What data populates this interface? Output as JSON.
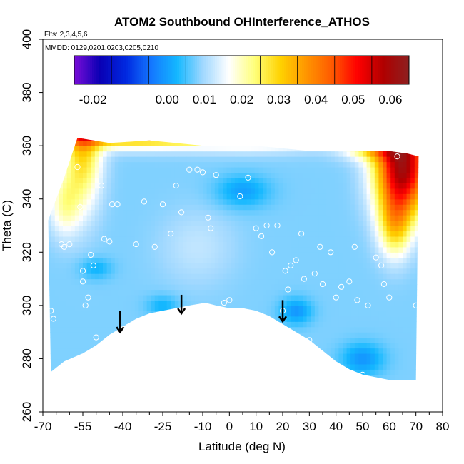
{
  "chart_data": {
    "type": "heatmap",
    "title": "ATOM2 Southbound OHInterference_ATHOS",
    "subtitle_flights": "Flts: 2,3,4,5,6",
    "subtitle_dates": "MMDD: 0129,0201,0203,0205,0210",
    "xlabel": "Latitude (deg N)",
    "ylabel": "Theta (C)",
    "xlim": [
      -70,
      80
    ],
    "ylim": [
      260,
      400
    ],
    "x_ticks": [
      -70,
      -55,
      -40,
      -25,
      -10,
      0,
      10,
      20,
      30,
      40,
      50,
      60,
      70,
      80
    ],
    "x_tick_labels": [
      "-70",
      "-55",
      "-40",
      "-25",
      "-10",
      "0",
      "10",
      "20",
      "30",
      "40",
      "50",
      "60",
      "70",
      "80"
    ],
    "x_minor_ticks": [
      -65,
      -60,
      -50,
      -45,
      -35,
      -30,
      -20,
      -15,
      -5,
      5,
      15,
      25,
      35,
      45,
      55,
      65,
      75
    ],
    "y_ticks": [
      260,
      280,
      300,
      320,
      340,
      360,
      380,
      400
    ],
    "y_tick_labels": [
      "260",
      "280",
      "300",
      "320",
      "340",
      "360",
      "380",
      "400"
    ],
    "colorbar": {
      "range": [
        -0.025,
        0.065
      ],
      "ticks": [
        -0.02,
        0.0,
        0.01,
        0.02,
        0.03,
        0.04,
        0.05,
        0.06
      ],
      "tick_labels": [
        "-0.02",
        "0.00",
        "0.01",
        "0.02",
        "0.03",
        "0.04",
        "0.05",
        "0.06"
      ],
      "colors": [
        "#7a0dd8",
        "#0a00b4",
        "#0028e0",
        "#1478ff",
        "#14b8ff",
        "#a0d8ff",
        "#ffffff",
        "#ffff7a",
        "#ffd200",
        "#ff9600",
        "#ff5a00",
        "#ff0000",
        "#b00000",
        "#8c2020"
      ]
    },
    "coverage_lower_boundary": [
      {
        "lat": -67,
        "theta": 275
      },
      {
        "lat": -62,
        "theta": 279
      },
      {
        "lat": -55,
        "theta": 282
      },
      {
        "lat": -50,
        "theta": 285
      },
      {
        "lat": -45,
        "theta": 289
      },
      {
        "lat": -40,
        "theta": 292
      },
      {
        "lat": -35,
        "theta": 295
      },
      {
        "lat": -30,
        "theta": 297
      },
      {
        "lat": -25,
        "theta": 298
      },
      {
        "lat": -20,
        "theta": 299
      },
      {
        "lat": -15,
        "theta": 300
      },
      {
        "lat": -9,
        "theta": 301
      },
      {
        "lat": -5,
        "theta": 300
      },
      {
        "lat": 0,
        "theta": 299
      },
      {
        "lat": 5,
        "theta": 299
      },
      {
        "lat": 10,
        "theta": 298
      },
      {
        "lat": 15,
        "theta": 296
      },
      {
        "lat": 20,
        "theta": 293
      },
      {
        "lat": 25,
        "theta": 290
      },
      {
        "lat": 30,
        "theta": 287
      },
      {
        "lat": 35,
        "theta": 283
      },
      {
        "lat": 40,
        "theta": 279
      },
      {
        "lat": 45,
        "theta": 276
      },
      {
        "lat": 50,
        "theta": 274
      },
      {
        "lat": 55,
        "theta": 273
      },
      {
        "lat": 60,
        "theta": 272
      },
      {
        "lat": 65,
        "theta": 272
      },
      {
        "lat": 70,
        "theta": 272
      }
    ],
    "coverage_upper_boundary": [
      {
        "lat": -68,
        "theta": 332
      },
      {
        "lat": -62,
        "theta": 348
      },
      {
        "lat": -57,
        "theta": 363
      },
      {
        "lat": -45,
        "theta": 361
      },
      {
        "lat": -30,
        "theta": 362
      },
      {
        "lat": -20,
        "theta": 361
      },
      {
        "lat": -10,
        "theta": 360
      },
      {
        "lat": 0,
        "theta": 360
      },
      {
        "lat": 10,
        "theta": 360
      },
      {
        "lat": 20,
        "theta": 359
      },
      {
        "lat": 30,
        "theta": 358
      },
      {
        "lat": 40,
        "theta": 358
      },
      {
        "lat": 50,
        "theta": 358
      },
      {
        "lat": 60,
        "theta": 358
      },
      {
        "lat": 67,
        "theta": 357
      },
      {
        "lat": 71,
        "theta": 356
      }
    ],
    "field_model": {
      "background": 0.008,
      "features": [
        {
          "lat": -55,
          "theta": 360,
          "dlat": 7,
          "dtheta": 22,
          "amp": 0.022
        },
        {
          "lat": -62,
          "theta": 338,
          "dlat": 6,
          "dtheta": 12,
          "amp": 0.012
        },
        {
          "lat": -40,
          "theta": 365,
          "dlat": 30,
          "dtheta": 5,
          "amp": 0.035
        },
        {
          "lat": 10,
          "theta": 366,
          "dlat": 30,
          "dtheta": 6,
          "amp": 0.03
        },
        {
          "lat": 65,
          "theta": 352,
          "dlat": 10,
          "dtheta": 18,
          "amp": 0.052
        },
        {
          "lat": 55,
          "theta": 360,
          "dlat": 12,
          "dtheta": 5,
          "amp": 0.02
        },
        {
          "lat": 62,
          "theta": 330,
          "dlat": 6,
          "dtheta": 12,
          "amp": 0.018
        },
        {
          "lat": 5,
          "theta": 343,
          "dlat": 10,
          "dtheta": 6,
          "amp": -0.008
        },
        {
          "lat": -12,
          "theta": 322,
          "dlat": 14,
          "dtheta": 14,
          "amp": 0.004
        },
        {
          "lat": 25,
          "theta": 298,
          "dlat": 6,
          "dtheta": 5,
          "amp": -0.009
        },
        {
          "lat": -25,
          "theta": 300,
          "dlat": 6,
          "dtheta": 4,
          "amp": -0.006
        },
        {
          "lat": 50,
          "theta": 280,
          "dlat": 8,
          "dtheta": 6,
          "amp": -0.009
        },
        {
          "lat": -50,
          "theta": 314,
          "dlat": 6,
          "dtheta": 4,
          "amp": -0.006
        }
      ]
    },
    "sample_points": [
      {
        "lat": -67,
        "theta": 298
      },
      {
        "lat": -66,
        "theta": 295
      },
      {
        "lat": -63,
        "theta": 323
      },
      {
        "lat": -62,
        "theta": 322
      },
      {
        "lat": -60,
        "theta": 323
      },
      {
        "lat": -57,
        "theta": 352
      },
      {
        "lat": -56,
        "theta": 337
      },
      {
        "lat": -55,
        "theta": 313
      },
      {
        "lat": -55,
        "theta": 309
      },
      {
        "lat": -54,
        "theta": 300
      },
      {
        "lat": -53,
        "theta": 303
      },
      {
        "lat": -52,
        "theta": 319
      },
      {
        "lat": -51,
        "theta": 315
      },
      {
        "lat": -50,
        "theta": 288
      },
      {
        "lat": -48,
        "theta": 345
      },
      {
        "lat": -47,
        "theta": 325
      },
      {
        "lat": -45,
        "theta": 324
      },
      {
        "lat": -44,
        "theta": 338
      },
      {
        "lat": -42,
        "theta": 338
      },
      {
        "lat": -40,
        "theta": 291
      },
      {
        "lat": -38,
        "theta": 292
      },
      {
        "lat": -35,
        "theta": 323
      },
      {
        "lat": -32,
        "theta": 339
      },
      {
        "lat": -30,
        "theta": 295
      },
      {
        "lat": -28,
        "theta": 322
      },
      {
        "lat": -25,
        "theta": 338
      },
      {
        "lat": -22,
        "theta": 327
      },
      {
        "lat": -20,
        "theta": 345
      },
      {
        "lat": -18,
        "theta": 335
      },
      {
        "lat": -15,
        "theta": 351
      },
      {
        "lat": -12,
        "theta": 351
      },
      {
        "lat": -10,
        "theta": 350
      },
      {
        "lat": -8,
        "theta": 333
      },
      {
        "lat": -7,
        "theta": 329
      },
      {
        "lat": -5,
        "theta": 349
      },
      {
        "lat": -2,
        "theta": 301
      },
      {
        "lat": 0,
        "theta": 302
      },
      {
        "lat": 4,
        "theta": 341
      },
      {
        "lat": 7,
        "theta": 348
      },
      {
        "lat": 10,
        "theta": 329
      },
      {
        "lat": 12,
        "theta": 326
      },
      {
        "lat": 14,
        "theta": 330
      },
      {
        "lat": 16,
        "theta": 320
      },
      {
        "lat": 18,
        "theta": 330
      },
      {
        "lat": 20,
        "theta": 298
      },
      {
        "lat": 21,
        "theta": 313
      },
      {
        "lat": 22,
        "theta": 306
      },
      {
        "lat": 23,
        "theta": 315
      },
      {
        "lat": 25,
        "theta": 317
      },
      {
        "lat": 27,
        "theta": 327
      },
      {
        "lat": 28,
        "theta": 310
      },
      {
        "lat": 30,
        "theta": 287
      },
      {
        "lat": 32,
        "theta": 312
      },
      {
        "lat": 34,
        "theta": 322
      },
      {
        "lat": 35,
        "theta": 308
      },
      {
        "lat": 38,
        "theta": 320
      },
      {
        "lat": 40,
        "theta": 303
      },
      {
        "lat": 42,
        "theta": 307
      },
      {
        "lat": 45,
        "theta": 309
      },
      {
        "lat": 47,
        "theta": 322
      },
      {
        "lat": 48,
        "theta": 302
      },
      {
        "lat": 50,
        "theta": 274
      },
      {
        "lat": 52,
        "theta": 300
      },
      {
        "lat": 55,
        "theta": 318
      },
      {
        "lat": 57,
        "theta": 315
      },
      {
        "lat": 58,
        "theta": 308
      },
      {
        "lat": 60,
        "theta": 303
      },
      {
        "lat": 63,
        "theta": 356
      },
      {
        "lat": 70,
        "theta": 300
      }
    ],
    "arrows": [
      {
        "lat": -41,
        "theta_top": 298,
        "theta_tip": 290
      },
      {
        "lat": -18,
        "theta_top": 304,
        "theta_tip": 297
      },
      {
        "lat": 20,
        "theta_top": 302,
        "theta_tip": 294
      }
    ]
  }
}
